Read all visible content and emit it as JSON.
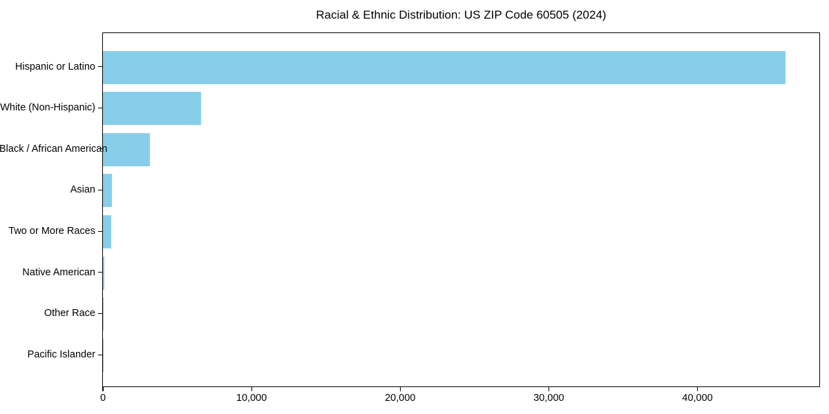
{
  "figure": {
    "background_color": "#ffffff",
    "frame_color": "#000000"
  },
  "chart_data": {
    "type": "bar",
    "orientation": "horizontal",
    "title": "Racial & Ethnic Distribution: US ZIP Code 60505 (2024)",
    "categories": [
      "Hispanic or Latino",
      "White (Non-Hispanic)",
      "Black / African American",
      "Asian",
      "Two or More Races",
      "Native American",
      "Other Race",
      "Pacific Islander"
    ],
    "values": [
      45900,
      6600,
      3150,
      620,
      580,
      70,
      60,
      10
    ],
    "xlabel": "",
    "ylabel": "",
    "xlim": [
      0,
      48200
    ],
    "xticks": [
      0,
      10000,
      20000,
      30000,
      40000
    ],
    "xtick_labels": [
      "0",
      "10,000",
      "20,000",
      "30,000",
      "40,000"
    ],
    "bar_color": "#87CEEB",
    "axis_color": "#000000",
    "text_color": "#000000",
    "grid": false,
    "legend": null
  }
}
